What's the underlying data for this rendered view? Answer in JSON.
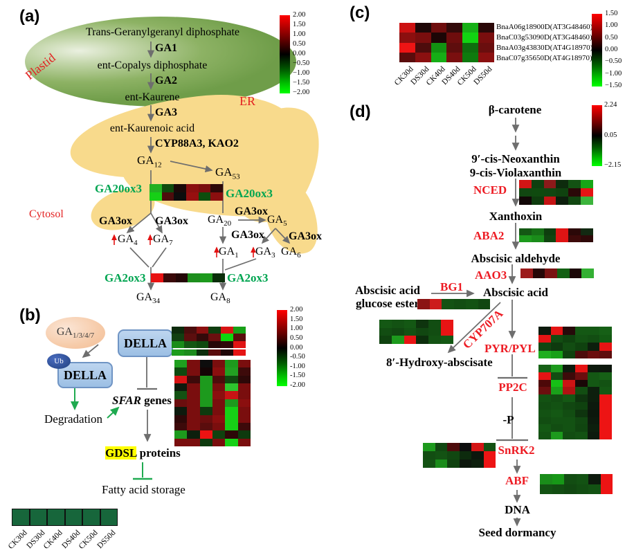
{
  "panel_a": {
    "label": "(a)",
    "compartments": {
      "plastid": "Plastid",
      "er": "ER",
      "cytosol": "Cytosol"
    },
    "steps": {
      "tggpp": "Trans-Geranylgeranyl diphosphate",
      "ga1": "GA1",
      "copalys": "ent-Copalys diphosphate",
      "ga2": "GA2",
      "kaurene": "ent-Kaurene",
      "ga3": "GA3",
      "kaurenoic": "ent-Kaurenoic acid",
      "cyp88": "CYP88A3, KAO2"
    },
    "gas": {
      "ga12": {
        "b": "GA",
        "s": "12"
      },
      "ga53": {
        "b": "GA",
        "s": "53"
      },
      "ga20": {
        "b": "GA",
        "s": "20"
      },
      "ga5": {
        "b": "GA",
        "s": "5"
      },
      "ga4": {
        "b": "GA",
        "s": "4"
      },
      "ga7": {
        "b": "GA",
        "s": "7"
      },
      "ga1": {
        "b": "GA",
        "s": "1"
      },
      "ga3": {
        "b": "GA",
        "s": "3"
      },
      "ga6": {
        "b": "GA",
        "s": "6"
      },
      "ga34": {
        "b": "GA",
        "s": "34"
      },
      "ga8": {
        "b": "GA",
        "s": "8"
      }
    },
    "enzymes": {
      "ga20ox3": "GA20ox3",
      "ga3ox": "GA3ox",
      "ga2ox3": "GA2ox3"
    },
    "heatmaps": {
      "ga20ox3": [
        [
          "#22b022",
          "#0e4a0e",
          "#1a0808",
          "#8b0f0f",
          "#7a0e0e",
          "#2d0808"
        ],
        [
          "#16d016",
          "#4d0c0c",
          "#0d0d0d",
          "#970f0f",
          "#0d4d0d",
          "#8b0f0f"
        ]
      ],
      "ga2ox3": [
        [
          "#e81212",
          "#3a0909",
          "#240707",
          "#1d8e1d",
          "#1d9a1d",
          "#0a2e0a"
        ]
      ]
    },
    "colorbar_ticks": [
      "2.00",
      "1.50",
      "1.00",
      "0.50",
      "0.00",
      "−0.50",
      "−1.00",
      "−1.50",
      "−2.00"
    ]
  },
  "panel_b": {
    "label": "(b)",
    "ga_pool": {
      "b": "GA",
      "s": "1/3/4/7"
    },
    "della": "DELLA",
    "ub": "Ub",
    "degradation": "Degradation",
    "sfar": {
      "italic": "SFAR",
      "rest": " genes"
    },
    "gdsl": {
      "hl": "GDSL",
      "rest": " proteins"
    },
    "fatty": "Fatty acid storage",
    "heatmaps": {
      "top3": [
        [
          "#0d2b0d",
          "#4a0d0d",
          "#8b1010",
          "#0f3d0f",
          "#d81414",
          "#17a017"
        ],
        [
          "#123f12",
          "#5c0e0e",
          "#330a0a",
          "#6b0f0f",
          "#0ed60e",
          "#5a0d0d"
        ],
        [
          "#1a8c1a",
          "#145614",
          "#0f4a0f",
          "#260808",
          "#2e0909",
          "#e01414"
        ]
      ],
      "top1": [
        [
          "#1d9c1d",
          "#1d8c1d",
          "#0c2e0c",
          "#5a0d0d",
          "#1f0707",
          "#e51414"
        ]
      ],
      "main": [
        [
          "#1fa01f",
          "#7a0e0e",
          "#0d0d0d",
          "#7a0e0e",
          "#1d9a1d",
          "#7a0e0e"
        ],
        [
          "#0f4a0f",
          "#7a0e0e",
          "#140505",
          "#8b0f0f",
          "#22a022",
          "#3d0a0a"
        ],
        [
          "#d81414",
          "#3d0a0a",
          "#1d9a1d",
          "#4d0c0c",
          "#0f4a0f",
          "#2d0808"
        ],
        [
          "#0d1a0d",
          "#7a0e0e",
          "#1d9a1d",
          "#7a0e0e",
          "#2ec62e",
          "#7a0e0e"
        ],
        [
          "#135213",
          "#7a0e0e",
          "#1d9a1d",
          "#8b0f0f",
          "#c81414",
          "#7a0e0e"
        ],
        [
          "#6b0e0e",
          "#7a0e0e",
          "#1d9a1d",
          "#7a0e0e",
          "#1d9a1d",
          "#8b0f0f"
        ],
        [
          "#0d1a0d",
          "#7a0e0e",
          "#0e3a0e",
          "#7a0e0e",
          "#16d016",
          "#7a0e0e"
        ],
        [
          "#2d0808",
          "#7a0e0e",
          "#6b0e0e",
          "#8b0f0f",
          "#16d016",
          "#7a0e0e"
        ],
        [
          "#3d0a0a",
          "#7a0e0e",
          "#5a0d0d",
          "#7a0e0e",
          "#16d016",
          "#3d0a0a"
        ],
        [
          "#1d9a1d",
          "#0d1f0d",
          "#ee1212",
          "#0f420f",
          "#2d0808",
          "#0e3a0e"
        ],
        [
          "#7a0e0e",
          "#7a0e0e",
          "#0e3a0e",
          "#7a0e0e",
          "#16d016",
          "#7a0e0e"
        ]
      ],
      "bottom": [
        [
          "#17663b",
          "#17663b",
          "#17663b",
          "#17663b",
          "#17663b",
          "#17663b"
        ]
      ]
    },
    "samples": [
      "CK30d",
      "DS30d",
      "CK40d",
      "DS40d",
      "CK50d",
      "DS50d"
    ],
    "colorbar_ticks": [
      "2.00",
      "1.50",
      "1.00",
      "0.50",
      "0.00",
      "-0.50",
      "-1.00",
      "-1.50",
      "-2.00"
    ]
  },
  "panel_c": {
    "label": "(c)",
    "genes": [
      "BnaA06g18900D(AT3G48460)",
      "BnaC03g53090D(AT3G48460)",
      "BnaA03g43830D(AT4G18970)",
      "BnaC07g35650D(AT4G18970)"
    ],
    "samples": [
      "CK30d",
      "DS30d",
      "CK40d",
      "DS40d",
      "CK50d",
      "DS50d"
    ],
    "heatmap": [
      [
        "#cc1111",
        "#1f0808",
        "#6e0d0d",
        "#330a0a",
        "#17b017",
        "#2a0808"
      ],
      [
        "#8b0f0f",
        "#7a0e0e",
        "#1c0606",
        "#6e0d0d",
        "#12d412",
        "#7a0e0e"
      ],
      [
        "#ed1414",
        "#4d0c0c",
        "#129212",
        "#5e0d0d",
        "#0e6e0e",
        "#6a0e0e"
      ],
      [
        "#5a0c0c",
        "#8b1010",
        "#16ae16",
        "#7a0f0f",
        "#0e7a0e",
        "#8b1010"
      ]
    ],
    "colorbar_ticks": [
      "1.50",
      "1.00",
      "0.50",
      "0.00",
      "−0.50",
      "−1.00",
      "−1.50"
    ]
  },
  "panel_d": {
    "label": "(d)",
    "nodes": {
      "bcarotene": "β-carotene",
      "neox": "9′-cis-Neoxanthin",
      "viol": "9-cis-Violaxanthin",
      "xanthoxin": "Xanthoxin",
      "aldehyde": "Abscisic aldehyde",
      "aba": "Abscisic acid",
      "ester1": "Abscisic acid",
      "ester2": "glucose ester",
      "hydroxy": "8′-Hydroxy-abscisate",
      "minus_p": "-P",
      "dna": "DNA",
      "dormancy": "Seed dormancy"
    },
    "enzymes": {
      "nced": "NCED",
      "aba2": "ABA2",
      "aao3": "AAO3",
      "bg1": "BG1",
      "cyp707a": "CYP707A",
      "pyrpyl": "PYR/PYL",
      "pp2c": "PP2C",
      "snrk2": "SnRK2",
      "abf": "ABF"
    },
    "heatmaps": {
      "nced": [
        [
          "#d31515",
          "#0f3f0f",
          "#8b1a1a",
          "#0d2b0d",
          "#135213",
          "#16a616"
        ],
        [
          "#114711",
          "#0f4a0f",
          "#114711",
          "#0f420f",
          "#2b0808",
          "#e51414"
        ],
        [
          "#120707",
          "#0e3c0e",
          "#c41414",
          "#0d1f0d",
          "#114711",
          "#3cb43c"
        ]
      ],
      "aba2": [
        [
          "#145814",
          "#167016",
          "#0e3e0e",
          "#e01414",
          "#2b0808",
          "#122912"
        ],
        [
          "#1d9a1d",
          "#1a8c1a",
          "#104510",
          "#e01414",
          "#3d0a0a",
          "#2e0909"
        ]
      ],
      "aao3": [
        [
          "#9c1c1c",
          "#260707",
          "#7a1212",
          "#136013",
          "#1c0707",
          "#33b033"
        ]
      ],
      "bg1": [
        [
          "#8b1414",
          "#cc1c1c",
          "#135213",
          "#124d12",
          "#135213",
          "#114711"
        ]
      ],
      "cyp707a": [
        [
          "#145814",
          "#135213",
          "#145814",
          "#0e340e",
          "#124d12",
          "#e81414"
        ],
        [
          "#124d12",
          "#114711",
          "#135213",
          "#114711",
          "#124d12",
          "#e81414"
        ],
        [
          "#0f420f",
          "#1d9a1d",
          "#e81414",
          "#0c2e0c",
          "#135213",
          "#145814"
        ]
      ],
      "pyrpyl": [
        [
          "#0d1a0d",
          "#e51414",
          "#260a0a",
          "#145814",
          "#145814",
          "#166016"
        ],
        [
          "#e51414",
          "#124d12",
          "#0f420f",
          "#135213",
          "#124d12",
          "#135a13"
        ],
        [
          "#114711",
          "#0e3a0e",
          "#124d12",
          "#0f420f",
          "#0d1f0d",
          "#e81414"
        ],
        [
          "#1fae1f",
          "#17a017",
          "#0f420f",
          "#4d0c0c",
          "#6b0e0e",
          "#5e0d0d"
        ]
      ],
      "pp2c": [
        [
          "#166016",
          "#1d9a1d",
          "#0d1a0d",
          "#e51414",
          "#0d1a0d",
          "#0d170d"
        ],
        [
          "#e51414",
          "#124d12",
          "#3d0a0a",
          "#6b0e0e",
          "#145814",
          "#166016"
        ],
        [
          "#4d0808",
          "#16c016",
          "#cc1414",
          "#1a0707",
          "#145814",
          "#135213"
        ],
        [
          "#6b0e0e",
          "#1aa01a",
          "#b01212",
          "#124d12",
          "#0d1f0d",
          "#145814"
        ],
        [
          "#135213",
          "#124d12",
          "#145814",
          "#0e340e",
          "#0d1f0d",
          "#ed1414"
        ],
        [
          "#124d12",
          "#135213",
          "#114711",
          "#0f420f",
          "#0d1a0d",
          "#ed1414"
        ],
        [
          "#135213",
          "#145814",
          "#124d12",
          "#0e340e",
          "#0c170c",
          "#ed1414"
        ],
        [
          "#124d12",
          "#135213",
          "#135213",
          "#114711",
          "#0d1a0d",
          "#ed1414"
        ],
        [
          "#145814",
          "#124d12",
          "#135213",
          "#104510",
          "#0d1f0d",
          "#ed1414"
        ],
        [
          "#135213",
          "#1d9a1d",
          "#124d12",
          "#135213",
          "#0d1a0d",
          "#ed1414"
        ]
      ],
      "snrk2": [
        [
          "#1d9a1d",
          "#114711",
          "#4d0c0c",
          "#0d0d0d",
          "#d31414",
          "#135213"
        ],
        [
          "#124d12",
          "#135213",
          "#114711",
          "#0d2b0d",
          "#0d170d",
          "#ed1414"
        ],
        [
          "#135213",
          "#1a8c1a",
          "#0f420f",
          "#0c170c",
          "#0d1f0d",
          "#ed1414"
        ]
      ],
      "abf": [
        [
          "#1a8c1a",
          "#179717",
          "#124d12",
          "#135213",
          "#0d1a0d",
          "#ed1414"
        ],
        [
          "#135213",
          "#124d12",
          "#114711",
          "#124d12",
          "#135213",
          "#ed1414"
        ]
      ]
    },
    "colorbar_ticks": [
      "2.24",
      "0.05",
      "−2.15"
    ]
  }
}
